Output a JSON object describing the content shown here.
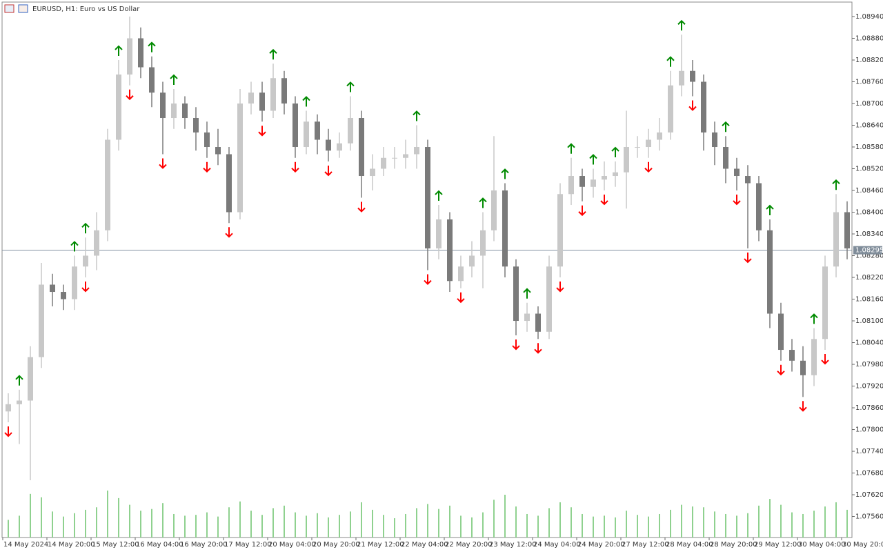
{
  "chart_data": {
    "type": "candlestick",
    "title": "EURUSD, H1:  Euro vs US Dollar",
    "categories": [
      "14 May 2024",
      null,
      null,
      null,
      "14 May 20:00",
      null,
      null,
      null,
      "15 May 12:00",
      null,
      null,
      null,
      "16 May 04:00",
      null,
      null,
      null,
      "16 May 20:00",
      null,
      null,
      null,
      "17 May 12:00",
      null,
      null,
      null,
      "20 May 04:00",
      null,
      null,
      null,
      "20 May 20:00",
      null,
      null,
      null,
      "21 May 12:00",
      null,
      null,
      null,
      "22 May 04:00",
      null,
      null,
      null,
      "22 May 20:00",
      null,
      null,
      null,
      "23 May 12:00",
      null,
      null,
      null,
      "24 May 04:00",
      null,
      null,
      null,
      "24 May 20:00",
      null,
      null,
      null,
      "27 May 12:00",
      null,
      null,
      null,
      "28 May 04:00",
      null,
      null,
      null,
      "28 May 20:00",
      null,
      null,
      null,
      "29 May 12:00",
      null,
      null,
      null,
      "30 May 04:00",
      null,
      null,
      null,
      "30 May 20:00"
    ],
    "open": [
      1.0785,
      1.0787,
      1.0788,
      1.08,
      1.082,
      1.0818,
      1.0816,
      1.0825,
      1.0828,
      1.0835,
      1.086,
      1.0878,
      1.0888,
      1.088,
      1.0873,
      1.0866,
      1.087,
      1.0866,
      1.0862,
      1.0858,
      1.0856,
      1.084,
      1.087,
      1.0873,
      1.0868,
      1.0877,
      1.087,
      1.0858,
      1.0865,
      1.086,
      1.0857,
      1.0859,
      1.0866,
      1.085,
      1.0852,
      1.0855,
      1.0855,
      1.0856,
      1.0858,
      1.083,
      1.0838,
      1.0821,
      1.0825,
      1.0828,
      1.0835,
      1.0846,
      1.0825,
      1.081,
      1.0812,
      1.0807,
      1.0825,
      1.0845,
      1.085,
      1.0847,
      1.0849,
      1.085,
      1.0851,
      1.0858,
      1.0858,
      1.086,
      1.0862,
      1.0875,
      1.0879,
      1.0876,
      1.0862,
      1.0858,
      1.0852,
      1.085,
      1.0848,
      1.0835,
      1.0812,
      1.0802,
      1.0799,
      1.0795,
      1.0805,
      1.0825,
      1.084
    ],
    "high": [
      1.079,
      1.0791,
      1.0803,
      1.0826,
      1.0823,
      1.082,
      1.0828,
      1.0833,
      1.084,
      1.0863,
      1.0882,
      1.0894,
      1.0891,
      1.0883,
      1.0876,
      1.0874,
      1.0872,
      1.0869,
      1.0865,
      1.0863,
      1.0858,
      1.0874,
      1.0876,
      1.0876,
      1.0881,
      1.0879,
      1.0872,
      1.0868,
      1.0867,
      1.0863,
      1.0862,
      1.0872,
      1.0868,
      1.0856,
      1.0858,
      1.0858,
      1.086,
      1.0864,
      1.086,
      1.0842,
      1.084,
      1.0828,
      1.0832,
      1.084,
      1.0861,
      1.0848,
      1.0827,
      1.0815,
      1.0814,
      1.0828,
      1.0848,
      1.0855,
      1.0852,
      1.0852,
      1.0854,
      1.0854,
      1.0868,
      1.0861,
      1.0863,
      1.0866,
      1.0879,
      1.0889,
      1.0882,
      1.0878,
      1.0865,
      1.0861,
      1.0855,
      1.0853,
      1.085,
      1.0838,
      1.0815,
      1.0805,
      1.0803,
      1.0808,
      1.0828,
      1.0845,
      1.0843
    ],
    "low": [
      1.0782,
      1.0776,
      1.0766,
      1.0797,
      1.0814,
      1.0813,
      1.0813,
      1.0822,
      1.0824,
      1.0832,
      1.0857,
      1.0875,
      1.0877,
      1.0869,
      1.0856,
      1.0863,
      1.0863,
      1.0857,
      1.0855,
      1.0853,
      1.0837,
      1.0838,
      1.0867,
      1.0865,
      1.0866,
      1.0867,
      1.0855,
      1.0856,
      1.0856,
      1.0854,
      1.0855,
      1.0857,
      1.0844,
      1.0846,
      1.085,
      1.0852,
      1.0852,
      1.0852,
      1.0824,
      1.0827,
      1.0818,
      1.0819,
      1.0822,
      1.0819,
      1.0832,
      1.0822,
      1.0806,
      1.0807,
      1.0805,
      1.0805,
      1.0822,
      1.0842,
      1.0843,
      1.0844,
      1.0846,
      1.0847,
      1.0841,
      1.0855,
      1.0855,
      1.0857,
      1.086,
      1.0872,
      1.0872,
      1.0857,
      1.0853,
      1.0848,
      1.0846,
      1.083,
      1.0832,
      1.0808,
      1.0799,
      1.0796,
      1.0789,
      1.0792,
      1.0802,
      1.0822,
      1.0827
    ],
    "close": [
      1.0787,
      1.0788,
      1.08,
      1.082,
      1.0818,
      1.0816,
      1.0825,
      1.0828,
      1.0835,
      1.086,
      1.0878,
      1.0888,
      1.088,
      1.0873,
      1.0866,
      1.087,
      1.0866,
      1.0862,
      1.0858,
      1.0856,
      1.084,
      1.087,
      1.0873,
      1.0868,
      1.0877,
      1.087,
      1.0858,
      1.0865,
      1.086,
      1.0857,
      1.0859,
      1.0866,
      1.085,
      1.0852,
      1.0855,
      1.0855,
      1.0856,
      1.0858,
      1.083,
      1.0838,
      1.0821,
      1.0825,
      1.0828,
      1.0835,
      1.0846,
      1.0825,
      1.081,
      1.0812,
      1.0807,
      1.0825,
      1.0845,
      1.085,
      1.0847,
      1.0849,
      1.085,
      1.0851,
      1.0858,
      1.0858,
      1.086,
      1.0862,
      1.0875,
      1.0879,
      1.0876,
      1.0862,
      1.0858,
      1.0852,
      1.085,
      1.0848,
      1.0835,
      1.0812,
      1.0802,
      1.0799,
      1.0795,
      1.0805,
      1.0825,
      1.084,
      1.083
    ],
    "volume": [
      2100,
      2600,
      5200,
      4800,
      3100,
      2500,
      2900,
      3300,
      3600,
      5600,
      4700,
      3900,
      3200,
      3400,
      4100,
      2800,
      2600,
      2700,
      3000,
      2500,
      3600,
      4300,
      3200,
      2700,
      3500,
      3800,
      3000,
      2600,
      2900,
      2400,
      2700,
      3100,
      4200,
      3300,
      2700,
      2300,
      2800,
      3500,
      4000,
      3400,
      3800,
      2600,
      2400,
      3000,
      4500,
      5100,
      3700,
      2800,
      2600,
      3500,
      4200,
      3600,
      2800,
      2500,
      2600,
      2400,
      3200,
      2700,
      2500,
      2800,
      3300,
      3900,
      3700,
      3600,
      3100,
      2800,
      2600,
      2900,
      3800,
      4600,
      3900,
      3000,
      2800,
      3200,
      3700,
      4200,
      3300
    ],
    "up_arrow": [
      null,
      1.0791,
      null,
      null,
      null,
      null,
      1.0828,
      1.0833,
      null,
      null,
      1.0882,
      null,
      null,
      1.0883,
      null,
      1.0874,
      null,
      null,
      null,
      null,
      null,
      null,
      null,
      null,
      1.0881,
      null,
      null,
      1.0868,
      null,
      null,
      null,
      1.0872,
      null,
      null,
      null,
      null,
      null,
      1.0864,
      null,
      1.0842,
      null,
      null,
      null,
      1.084,
      null,
      1.0848,
      null,
      1.0815,
      null,
      null,
      null,
      1.0855,
      null,
      1.0852,
      null,
      1.0854,
      null,
      null,
      null,
      null,
      1.0879,
      1.0889,
      null,
      null,
      null,
      1.0861,
      null,
      null,
      null,
      1.0838,
      null,
      null,
      null,
      1.0808,
      null,
      1.0845,
      null
    ],
    "down_arrow": [
      1.0782,
      null,
      null,
      null,
      null,
      null,
      null,
      1.0822,
      null,
      null,
      null,
      1.0875,
      null,
      null,
      1.0856,
      null,
      null,
      null,
      1.0855,
      null,
      1.0837,
      null,
      null,
      1.0865,
      null,
      null,
      1.0855,
      null,
      null,
      1.0854,
      null,
      null,
      1.0844,
      null,
      null,
      null,
      null,
      null,
      1.0824,
      null,
      null,
      1.0819,
      null,
      null,
      null,
      null,
      1.0806,
      null,
      1.0805,
      null,
      1.0822,
      null,
      1.0843,
      null,
      1.0846,
      null,
      null,
      null,
      1.0855,
      null,
      null,
      null,
      1.0872,
      null,
      null,
      null,
      1.0846,
      1.083,
      null,
      null,
      1.0799,
      null,
      1.0789,
      null,
      1.0802,
      null,
      null
    ],
    "up_color": "#c8c8c8",
    "down_color": "#7a7a7a",
    "volume_color": "#8fd18f",
    "up_arrow_color": "#008a00",
    "down_arrow_color": "#ff0000",
    "current_price": {
      "value": 1.08295,
      "label": "1.08295"
    },
    "ylim": [
      1.07502,
      1.0898
    ],
    "vlim": [
      0,
      6500
    ],
    "yticks": [
      {
        "value": 1.0894,
        "label": "1.08940"
      },
      {
        "value": 1.0888,
        "label": "1.08880"
      },
      {
        "value": 1.0882,
        "label": "1.08820"
      },
      {
        "value": 1.0876,
        "label": "1.08760"
      },
      {
        "value": 1.087,
        "label": "1.08700"
      },
      {
        "value": 1.0864,
        "label": "1.08640"
      },
      {
        "value": 1.0858,
        "label": "1.08580"
      },
      {
        "value": 1.0852,
        "label": "1.08520"
      },
      {
        "value": 1.0846,
        "label": "1.08460"
      },
      {
        "value": 1.084,
        "label": "1.08400"
      },
      {
        "value": 1.0834,
        "label": "1.08340"
      },
      {
        "value": 1.0828,
        "label": "1.08280"
      },
      {
        "value": 1.0822,
        "label": "1.08220"
      },
      {
        "value": 1.0816,
        "label": "1.08160"
      },
      {
        "value": 1.081,
        "label": "1.08100"
      },
      {
        "value": 1.0804,
        "label": "1.08040"
      },
      {
        "value": 1.0798,
        "label": "1.07980"
      },
      {
        "value": 1.0792,
        "label": "1.07920"
      },
      {
        "value": 1.0786,
        "label": "1.07860"
      },
      {
        "value": 1.078,
        "label": "1.07800"
      },
      {
        "value": 1.0774,
        "label": "1.07740"
      },
      {
        "value": 1.0768,
        "label": "1.07680"
      },
      {
        "value": 1.0762,
        "label": "1.07620"
      },
      {
        "value": 1.0756,
        "label": "1.07560"
      }
    ]
  }
}
